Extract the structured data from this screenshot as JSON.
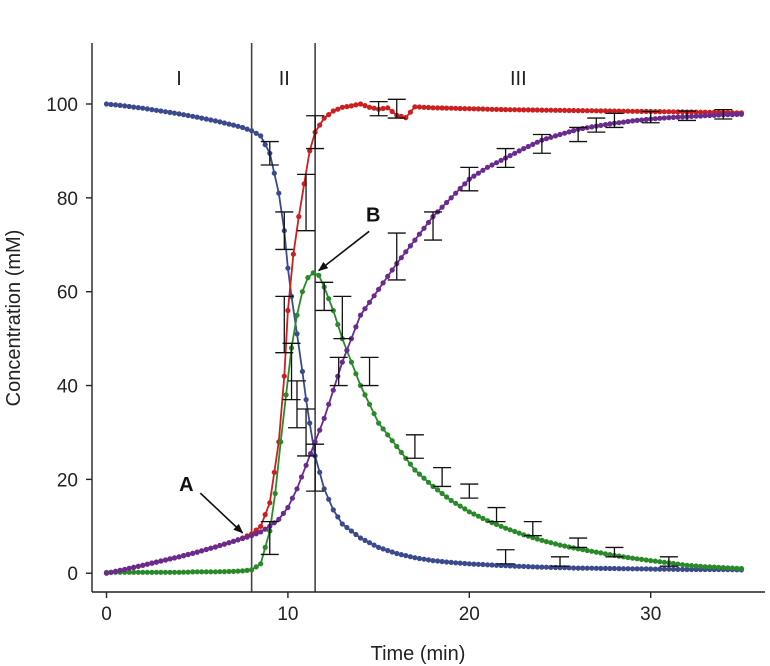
{
  "chart_data": {
    "type": "line",
    "title": "",
    "xlabel": "Time (min)",
    "ylabel": "Concentration (mM)",
    "xlim": [
      -0.8,
      36.3
    ],
    "ylim": [
      -4,
      113
    ],
    "xticks": [
      0,
      10,
      20,
      30
    ],
    "yticks": [
      0,
      20,
      40,
      60,
      80,
      100
    ],
    "grid": false,
    "legend": "none",
    "regions": {
      "boundaries": [
        8.0,
        11.5
      ],
      "labels": [
        {
          "text": "I",
          "x": 4.0,
          "y": 104
        },
        {
          "text": "II",
          "x": 9.8,
          "y": 104
        },
        {
          "text": "III",
          "x": 22.7,
          "y": 104
        }
      ]
    },
    "annotations": [
      {
        "text": "A",
        "text_x": 4.4,
        "text_y": 17.5,
        "point_x": 7.5,
        "point_y": 8.6
      },
      {
        "text": "B",
        "text_x": 14.7,
        "text_y": 75,
        "point_x": 11.7,
        "point_y": 64.5
      }
    ],
    "series": [
      {
        "color": "#3b4a8c",
        "x": [
          0,
          1,
          2,
          3,
          4,
          5,
          6,
          7,
          7.5,
          8,
          8.5,
          9,
          9.5,
          9.8,
          10,
          10.2,
          10.5,
          10.8,
          11,
          11.2,
          11.5,
          12,
          12.5,
          13,
          14,
          15,
          16,
          17,
          18,
          19,
          20,
          22,
          24,
          26,
          28,
          30,
          32,
          34,
          35
        ],
        "y": [
          100,
          99.6,
          99.1,
          98.5,
          97.9,
          97.2,
          96.4,
          95.5,
          95.0,
          94.3,
          93.2,
          89.5,
          81,
          73,
          65,
          59,
          51,
          43,
          37,
          32,
          25,
          18,
          13.5,
          10.5,
          7.5,
          5.5,
          4.2,
          3.3,
          2.7,
          2.3,
          2.0,
          1.6,
          1.3,
          1.1,
          1.0,
          0.9,
          0.8,
          0.8,
          0.7
        ]
      },
      {
        "color": "#cc1f1f",
        "x": [
          0,
          1,
          2,
          3,
          4,
          5,
          6,
          7,
          7.5,
          8,
          8.5,
          9,
          9.5,
          9.8,
          10,
          10.3,
          10.6,
          10.9,
          11.2,
          11.5,
          12,
          12.5,
          13,
          13.5,
          14,
          14.5,
          15,
          15.5,
          16,
          16.5,
          17,
          18,
          20,
          22,
          24,
          26,
          28,
          30,
          32,
          34,
          35
        ],
        "y": [
          0,
          0.8,
          1.7,
          2.6,
          3.5,
          4.5,
          5.6,
          6.8,
          7.5,
          8.4,
          10,
          15,
          28,
          42,
          56,
          68,
          76,
          83,
          90,
          94,
          97,
          98.5,
          99.3,
          99.6,
          100,
          99.3,
          98.9,
          99.2,
          97.6,
          97.1,
          99.4,
          99.2,
          99.0,
          98.8,
          98.7,
          98.6,
          98.5,
          98.4,
          98.3,
          98.2,
          98.1
        ]
      },
      {
        "color": "#2a8a2a",
        "x": [
          0,
          1,
          2,
          3,
          4,
          5,
          6,
          7,
          7.5,
          8,
          8.5,
          9,
          9.3,
          9.6,
          9.9,
          10.2,
          10.5,
          10.8,
          11.1,
          11.4,
          11.7,
          12,
          12.5,
          13,
          14,
          15,
          16,
          17,
          18,
          19,
          20,
          21,
          22,
          23,
          24,
          25,
          26,
          27,
          28,
          29,
          30,
          31,
          32,
          33,
          34,
          35
        ],
        "y": [
          0.2,
          0.2,
          0.2,
          0.2,
          0.2,
          0.3,
          0.3,
          0.4,
          0.5,
          0.7,
          2,
          9,
          17,
          28,
          38,
          48,
          55,
          60,
          63,
          64,
          63.5,
          61,
          56,
          50,
          40,
          32,
          27,
          22,
          18.5,
          15.5,
          13.1,
          11.2,
          9.6,
          8.2,
          7.0,
          6.0,
          5.2,
          4.5,
          3.8,
          3.2,
          2.7,
          2.2,
          1.7,
          1.4,
          1.2,
          1.0
        ]
      },
      {
        "color": "#6a2a8e",
        "x": [
          0,
          1,
          2,
          3,
          4,
          5,
          6,
          7,
          7.5,
          8,
          8.5,
          9,
          9.5,
          10,
          10.5,
          11,
          11.5,
          12,
          12.5,
          13,
          13.5,
          14,
          15,
          16,
          17,
          18,
          19,
          20,
          21,
          22,
          23,
          24,
          25,
          26,
          27,
          28,
          29,
          30,
          31,
          32,
          33,
          34,
          35
        ],
        "y": [
          0,
          0.8,
          1.7,
          2.6,
          3.5,
          4.5,
          5.6,
          6.8,
          7.4,
          8.0,
          8.8,
          10,
          11.5,
          14,
          18,
          23,
          28,
          33,
          39,
          45,
          50,
          55,
          60.5,
          66,
          71,
          76,
          80,
          84,
          86.5,
          88.5,
          90.5,
          92.3,
          93.5,
          94.6,
          95.3,
          95.9,
          96.4,
          96.8,
          97.1,
          97.3,
          97.5,
          97.7,
          97.8
        ]
      }
    ],
    "error_bars": [
      {
        "x": 9.0,
        "y": 7.5,
        "err": 3.5
      },
      {
        "x": 9.0,
        "y": 89.5,
        "err": 2.5
      },
      {
        "x": 9.8,
        "y": 73,
        "err": 4
      },
      {
        "x": 9.8,
        "y": 53,
        "err": 6
      },
      {
        "x": 10.2,
        "y": 43,
        "err": 6
      },
      {
        "x": 10.5,
        "y": 36,
        "err": 5
      },
      {
        "x": 11.0,
        "y": 79,
        "err": 6
      },
      {
        "x": 11.0,
        "y": 30,
        "err": 5
      },
      {
        "x": 11.5,
        "y": 22.5,
        "err": 5
      },
      {
        "x": 11.5,
        "y": 94,
        "err": 3.5
      },
      {
        "x": 12.0,
        "y": 59,
        "err": 3
      },
      {
        "x": 12.8,
        "y": 43,
        "err": 3
      },
      {
        "x": 13.0,
        "y": 54.5,
        "err": 4.5
      },
      {
        "x": 14.5,
        "y": 43,
        "err": 3
      },
      {
        "x": 15.0,
        "y": 99,
        "err": 1.5
      },
      {
        "x": 16.0,
        "y": 67.5,
        "err": 5
      },
      {
        "x": 16.0,
        "y": 99,
        "err": 2
      },
      {
        "x": 17.0,
        "y": 27,
        "err": 2.5
      },
      {
        "x": 18.0,
        "y": 74,
        "err": 3
      },
      {
        "x": 18.5,
        "y": 20.5,
        "err": 2
      },
      {
        "x": 20.0,
        "y": 84,
        "err": 2.5
      },
      {
        "x": 20.0,
        "y": 17.5,
        "err": 1.5
      },
      {
        "x": 21.5,
        "y": 12.5,
        "err": 1.5
      },
      {
        "x": 22.0,
        "y": 88.5,
        "err": 2
      },
      {
        "x": 22.0,
        "y": 3.5,
        "err": 1.5
      },
      {
        "x": 23.5,
        "y": 9.5,
        "err": 1.5
      },
      {
        "x": 24.0,
        "y": 91.5,
        "err": 2
      },
      {
        "x": 25.0,
        "y": 2.5,
        "err": 1.0
      },
      {
        "x": 26.0,
        "y": 93.5,
        "err": 1.5
      },
      {
        "x": 26.0,
        "y": 6.5,
        "err": 1.0
      },
      {
        "x": 27.0,
        "y": 95.5,
        "err": 1.5
      },
      {
        "x": 28.0,
        "y": 96.5,
        "err": 1.5
      },
      {
        "x": 28.0,
        "y": 4.5,
        "err": 1.0
      },
      {
        "x": 30.0,
        "y": 97.2,
        "err": 1.2
      },
      {
        "x": 31.0,
        "y": 2.5,
        "err": 1.0
      },
      {
        "x": 32.0,
        "y": 97.5,
        "err": 1.0
      },
      {
        "x": 34.0,
        "y": 97.8,
        "err": 1.0
      }
    ]
  }
}
